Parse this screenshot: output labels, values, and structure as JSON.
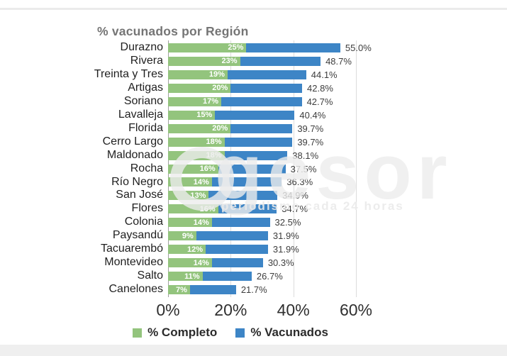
{
  "title": "% vacunados por Región",
  "watermark": {
    "main": "gesor",
    "tagline": "periodismo cada 24 horas"
  },
  "legend": [
    {
      "label": "% Completo",
      "color": "#93c47d"
    },
    {
      "label": "% Vacunados",
      "color": "#3d85c6"
    }
  ],
  "x_axis": {
    "tick_labels": [
      "0%",
      "20%",
      "40%",
      "60%"
    ],
    "tick_values": [
      0,
      20,
      40,
      60
    ]
  },
  "chart_data": {
    "type": "bar",
    "orientation": "horizontal",
    "stacked": true,
    "title": "% vacunados por Región",
    "xlim": [
      0,
      60
    ],
    "grid": true,
    "legend_position": "bottom",
    "categories": [
      "Durazno",
      "Rivera",
      "Treinta y Tres",
      "Artigas",
      "Soriano",
      "Lavalleja",
      "Florida",
      "Cerro Largo",
      "Maldonado",
      "Rocha",
      "Río Negro",
      "San José",
      "Flores",
      "Colonia",
      "Paysandú",
      "Tacuarembó",
      "Montevideo",
      "Salto",
      "Canelones"
    ],
    "series": [
      {
        "name": "% Completo",
        "color": "#93c47d",
        "values": [
          25,
          23,
          19,
          20,
          17,
          15,
          20,
          18,
          18,
          16,
          14,
          13,
          16,
          14,
          9,
          12,
          14,
          11,
          7
        ],
        "labels": [
          "25%",
          "23%",
          "19%",
          "20%",
          "17%",
          "15%",
          "20%",
          "18%",
          "18%",
          "16%",
          "14%",
          "13%",
          "16%",
          "14%",
          "9%",
          "12%",
          "14%",
          "11%",
          "7%"
        ]
      },
      {
        "name": "% Vacunados",
        "color": "#3d85c6",
        "values": [
          55.0,
          48.7,
          44.1,
          42.8,
          42.7,
          40.4,
          39.7,
          39.7,
          38.1,
          37.5,
          36.3,
          34.9,
          34.7,
          32.5,
          31.9,
          31.9,
          30.3,
          26.7,
          21.7
        ],
        "labels": [
          "55.0%",
          "48.7%",
          "44.1%",
          "42.8%",
          "42.7%",
          "40.4%",
          "39.7%",
          "39.7%",
          "38.1%",
          "37.5%",
          "36.3%",
          "34.9%",
          "34.7%",
          "32.5%",
          "31.9%",
          "31.9%",
          "30.3%",
          "26.7%",
          "21.7%"
        ]
      }
    ]
  }
}
